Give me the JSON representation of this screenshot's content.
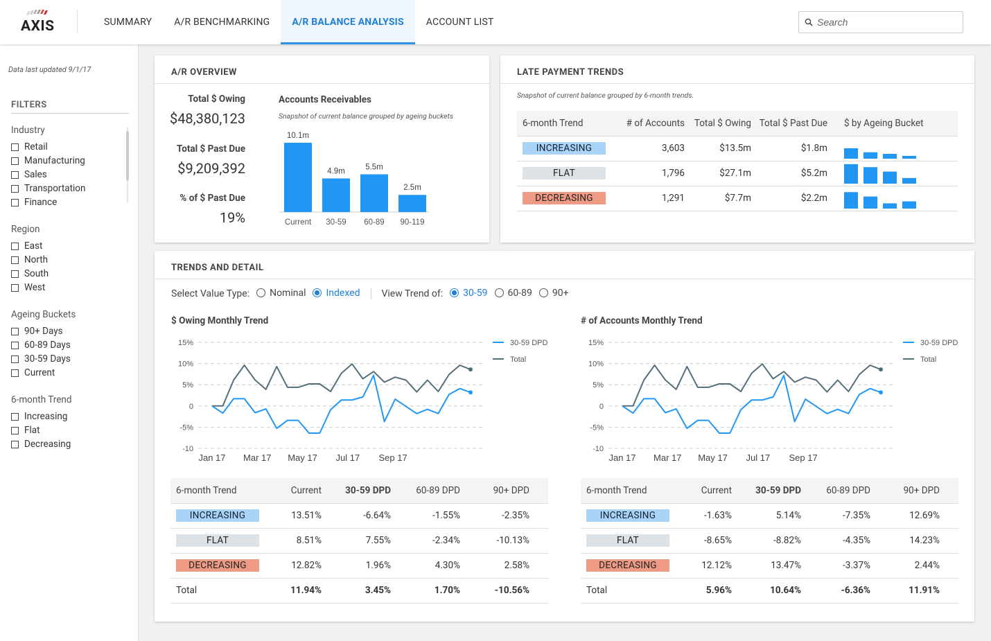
{
  "app": {
    "logo": "AXIS",
    "logo_icon": "axis-stripes-logo"
  },
  "nav": {
    "tabs": [
      {
        "label": "SUMMARY",
        "active": false
      },
      {
        "label": "A/R BENCHMARKING",
        "active": false
      },
      {
        "label": "A/R BALANCE ANALYSIS",
        "active": true
      },
      {
        "label": "ACCOUNT LIST",
        "active": false
      }
    ]
  },
  "search": {
    "placeholder": "Search",
    "icon": "search-icon"
  },
  "sidebar": {
    "updated": "Data last updated 9/1/17",
    "filters_title": "FILTERS",
    "groups": [
      {
        "title": "Industry",
        "items": [
          "Retail",
          "Manufacturing",
          "Sales",
          "Transportation",
          "Finance"
        ]
      },
      {
        "title": "Region",
        "items": [
          "East",
          "North",
          "South",
          "West"
        ]
      },
      {
        "title": "Ageing Buckets",
        "items": [
          "90+ Days",
          "60-89 Days",
          "30-59 Days",
          "Current"
        ]
      },
      {
        "title": "6-month Trend",
        "items": [
          "Increasing",
          "Flat",
          "Decreasing"
        ]
      }
    ]
  },
  "overview": {
    "title": "A/R OVERVIEW",
    "total_owing_label": "Total $ Owing",
    "total_owing_value": "$48,380,123",
    "total_past_due_label": "Total $ Past Due",
    "total_past_due_value": "$9,209,392",
    "pct_past_due_label": "% of $ Past Due",
    "pct_past_due_value": "19%",
    "chart_title": "Accounts Receivables",
    "chart_note": "Snapshot of current balance grouped by ageing buckets"
  },
  "late": {
    "title": "LATE PAYMENT TRENDS",
    "note": "Snapshot of current balance grouped by 6-month trends.",
    "headers": [
      "6-month Trend",
      "# of Accounts",
      "Total $ Owing",
      "Total $ Past Due",
      "$ by Ageing Bucket"
    ],
    "rows": [
      {
        "trend": "INCREASING",
        "accounts": "3,603",
        "owing": "$13.5m",
        "past_due": "$1.8m",
        "buckets": [
          0.52,
          0.32,
          0.24,
          0.14
        ]
      },
      {
        "trend": "FLAT",
        "accounts": "1,796",
        "owing": "$27.1m",
        "past_due": "$5.2m",
        "buckets": [
          0.97,
          0.82,
          0.6,
          0.28
        ]
      },
      {
        "trend": "DECREASING",
        "accounts": "1,291",
        "owing": "$7.7m",
        "past_due": "$2.2m",
        "buckets": [
          0.82,
          0.6,
          0.26,
          0.36
        ]
      }
    ]
  },
  "trends": {
    "title": "TRENDS AND DETAIL",
    "value_type_label": "Select Value Type:",
    "value_type_options": [
      "Nominal",
      "Indexed"
    ],
    "value_type_selected": "Indexed",
    "view_trend_label": "View Trend of:",
    "view_trend_options": [
      "30-59",
      "60-89",
      "90+"
    ],
    "view_trend_selected": "30-59",
    "owing_chart_title": "$ Owing Monthly Trend",
    "accounts_chart_title": "# of Accounts Monthly Trend",
    "table_headers": [
      "6-month Trend",
      "Current",
      "30-59 DPD",
      "60-89 DPD",
      "90+ DPD"
    ],
    "owing_table": [
      {
        "trend": "INCREASING",
        "vals": [
          "13.51%",
          "-6.64%",
          "-1.55%",
          "-2.35%"
        ]
      },
      {
        "trend": "FLAT",
        "vals": [
          "8.51%",
          "7.55%",
          "-2.34%",
          "-10.13%"
        ]
      },
      {
        "trend": "DECREASING",
        "vals": [
          "12.82%",
          "1.96%",
          "4.30%",
          "2.58%"
        ]
      },
      {
        "trend": "Total",
        "vals": [
          "11.94%",
          "3.45%",
          "1.70%",
          "-10.56%"
        ]
      }
    ],
    "accounts_table": [
      {
        "trend": "INCREASING",
        "vals": [
          "-1.63%",
          "5.14%",
          "-7.35%",
          "12.69%"
        ]
      },
      {
        "trend": "FLAT",
        "vals": [
          "-8.65%",
          "-8.82%",
          "-4.35%",
          "14.23%"
        ]
      },
      {
        "trend": "DECREASING",
        "vals": [
          "12.12%",
          "13.47%",
          "-3.37%",
          "2.44%"
        ]
      },
      {
        "trend": "Total",
        "vals": [
          "5.96%",
          "10.64%",
          "-6.36%",
          "11.91%"
        ]
      }
    ]
  },
  "colors": {
    "accent": "#2196f3",
    "dark": "#546e7a",
    "increasing": "#a9d3f7",
    "flat": "#dde2e6",
    "decreasing": "#ef9a85"
  },
  "chart_data": [
    {
      "type": "bar",
      "title": "Accounts Receivables",
      "categories": [
        "Current",
        "30-59",
        "60-89",
        "90-119"
      ],
      "values": [
        10.1,
        4.9,
        5.5,
        2.5
      ],
      "labels": [
        "10.1m",
        "4.9m",
        "5.5m",
        "2.5m"
      ],
      "ylim": [
        0,
        10.1
      ]
    },
    {
      "type": "line",
      "title": "$ Owing Monthly Trend",
      "x_ticks": [
        "Jan 17",
        "Mar 17",
        "May 17",
        "Jul 17",
        "Sep 17"
      ],
      "y_ticks": [
        "15%",
        "10%",
        "5%",
        "0",
        "-5%",
        "-10"
      ],
      "ylim": [
        -10,
        15
      ],
      "series": [
        {
          "name": "30-59 DPD",
          "values": [
            0,
            -1.7,
            1.7,
            1.7,
            -1.6,
            -0.7,
            -5.3,
            -3.4,
            -3.4,
            -6.4,
            -6.4,
            -0.9,
            1.4,
            1.4,
            2.1,
            7.2,
            -3.7,
            1.6,
            -0.1,
            -1.8,
            -0.8,
            -1.8,
            2.7,
            4.1,
            3.2
          ]
        },
        {
          "name": "Total",
          "values": [
            0,
            0,
            6.1,
            9.6,
            6.1,
            3.9,
            9.3,
            4.4,
            4.4,
            5.2,
            5.2,
            3.4,
            7.7,
            9.9,
            6.4,
            8.1,
            5.6,
            6.8,
            6.1,
            3.3,
            6.1,
            3.4,
            7.4,
            9.6,
            8.6
          ]
        }
      ]
    },
    {
      "type": "line",
      "title": "# of Accounts Monthly Trend",
      "x_ticks": [
        "Jan 17",
        "Mar 17",
        "May 17",
        "Jul 17",
        "Sep 17"
      ],
      "y_ticks": [
        "15%",
        "10%",
        "5%",
        "0",
        "-5%",
        "-10"
      ],
      "ylim": [
        -10,
        15
      ],
      "series": [
        {
          "name": "30-59 DPD",
          "values": [
            0,
            -1.7,
            1.7,
            1.7,
            -1.6,
            -0.7,
            -5.3,
            -3.4,
            -3.4,
            -6.4,
            -6.4,
            -0.9,
            1.4,
            1.4,
            2.1,
            7.2,
            -3.7,
            1.6,
            -0.1,
            -1.8,
            -0.8,
            -1.8,
            2.7,
            4.1,
            3.2
          ]
        },
        {
          "name": "Total",
          "values": [
            0,
            0,
            6.1,
            9.6,
            6.1,
            3.9,
            9.3,
            4.4,
            4.4,
            5.2,
            5.2,
            3.4,
            7.7,
            9.9,
            6.4,
            8.1,
            5.6,
            6.8,
            6.1,
            3.3,
            6.1,
            3.4,
            7.4,
            9.6,
            8.6
          ]
        }
      ]
    }
  ]
}
